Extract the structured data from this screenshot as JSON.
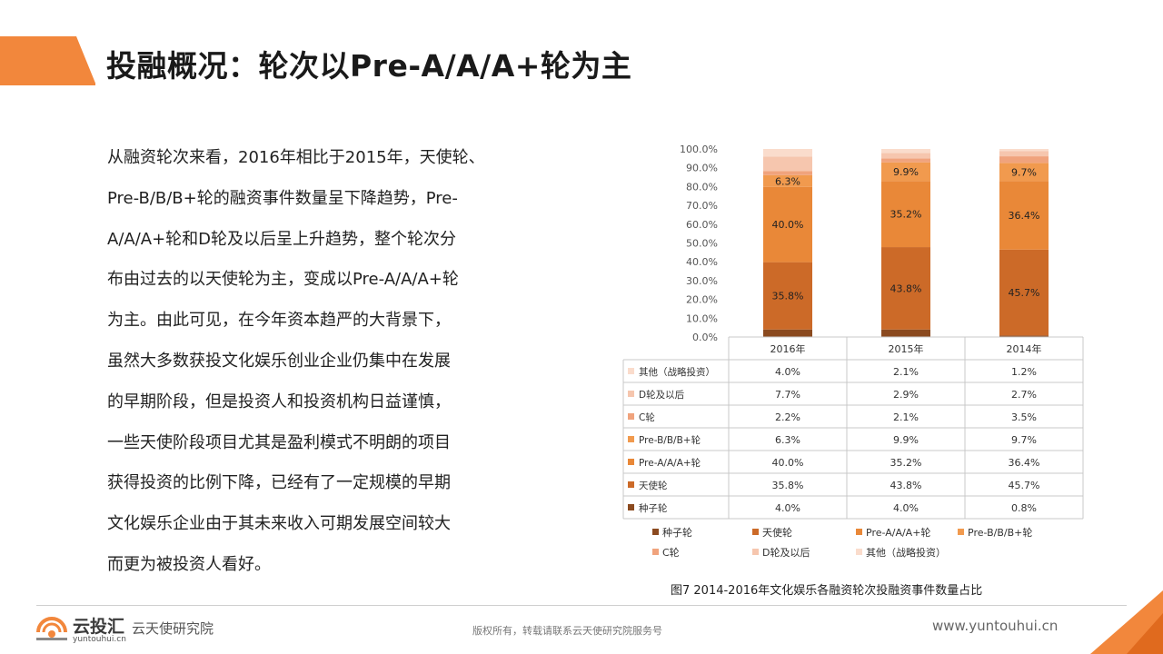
{
  "slide": {
    "title": "投融概况：轮次以Pre-A/A/A+轮为主",
    "body_lines": [
      "从融资轮次来看，2016年相比于2015年，天使轮、",
      "Pre-B/B/B+轮的融资事件数量呈下降趋势，Pre-",
      "A/A/A+轮和D轮及以后呈上升趋势，整个轮次分",
      "布由过去的以天使轮为主，变成以Pre-A/A/A+轮",
      "为主。由此可见，在今年资本趋严的大背景下，",
      "虽然大多数获投文化娱乐创业企业仍集中在发展",
      "的早期阶段，但是投资人和投资机构日益谨慎，",
      "一些天使阶段项目尤其是盈利模式不明朗的项目",
      "获得投资的比例下降，已经有了一定规模的早期",
      "文化娱乐企业由于其未来收入可期发展空间较大",
      "而更为被投资人看好。"
    ]
  },
  "chart_data": {
    "type": "bar",
    "stacked": true,
    "categories": [
      "2016年",
      "2015年",
      "2014年"
    ],
    "series": [
      {
        "name": "种子轮",
        "values": [
          4.0,
          4.0,
          0.8
        ],
        "color": "#8b4a1f"
      },
      {
        "name": "天使轮",
        "values": [
          35.8,
          43.8,
          45.7
        ],
        "color": "#cc6a28"
      },
      {
        "name": "Pre-A/A/A+轮",
        "values": [
          40.0,
          35.2,
          36.4
        ],
        "color": "#e98838"
      },
      {
        "name": "Pre-B/B/B+轮",
        "values": [
          6.3,
          9.9,
          9.7
        ],
        "color": "#f19a4e"
      },
      {
        "name": "C轮",
        "values": [
          2.2,
          2.1,
          3.5
        ],
        "color": "#f0a37d"
      },
      {
        "name": "D轮及以后",
        "values": [
          7.7,
          2.9,
          2.7
        ],
        "color": "#f6c6ae"
      },
      {
        "name": "其他（战略投资）",
        "values": [
          4.0,
          2.1,
          1.2
        ],
        "color": "#fadccc"
      }
    ],
    "table_rows": [
      {
        "name": "其他（战略投资）",
        "cells": [
          "4.0%",
          "2.1%",
          "1.2%"
        ]
      },
      {
        "name": "D轮及以后",
        "cells": [
          "7.7%",
          "2.9%",
          "2.7%"
        ]
      },
      {
        "name": "C轮",
        "cells": [
          "2.2%",
          "2.1%",
          "3.5%"
        ]
      },
      {
        "name": "Pre-B/B/B+轮",
        "cells": [
          "6.3%",
          "9.9%",
          "9.7%"
        ]
      },
      {
        "name": "Pre-A/A/A+轮",
        "cells": [
          "40.0%",
          "35.2%",
          "36.4%"
        ]
      },
      {
        "name": "天使轮",
        "cells": [
          "35.8%",
          "43.8%",
          "45.7%"
        ]
      },
      {
        "name": "种子轮",
        "cells": [
          "4.0%",
          "4.0%",
          "0.8%"
        ]
      }
    ],
    "data_labels": [
      {
        "series": "天使轮",
        "labels": [
          "35.8%",
          "43.8%",
          "45.7%"
        ]
      },
      {
        "series": "Pre-A/A/A+轮",
        "labels": [
          "40.0%",
          "35.2%",
          "36.4%"
        ]
      },
      {
        "series": "Pre-B/B/B+轮",
        "labels": [
          "6.3%",
          "9.9%",
          "9.7%"
        ]
      }
    ],
    "y_ticks": [
      "0.0%",
      "10.0%",
      "20.0%",
      "30.0%",
      "40.0%",
      "50.0%",
      "60.0%",
      "70.0%",
      "80.0%",
      "90.0%",
      "100.0%"
    ],
    "ylim": [
      0,
      100
    ],
    "legend_rows": [
      [
        "种子轮",
        "天使轮",
        "Pre-A/A/A+轮",
        "Pre-B/B/B+轮"
      ],
      [
        "C轮",
        "D轮及以后",
        "其他（战略投资）"
      ]
    ],
    "caption": "图7  2014-2016年文化娱乐各融资轮次投融资事件数量占比"
  },
  "footer": {
    "brand": "云投汇",
    "brand_sub": "yuntouhui.cn",
    "institute": "云天使研究院",
    "copyright": "版权所有，转载请联系云天使研究院服务号",
    "url": "www.yuntouhui.cn",
    "accent": "#f2873c"
  }
}
